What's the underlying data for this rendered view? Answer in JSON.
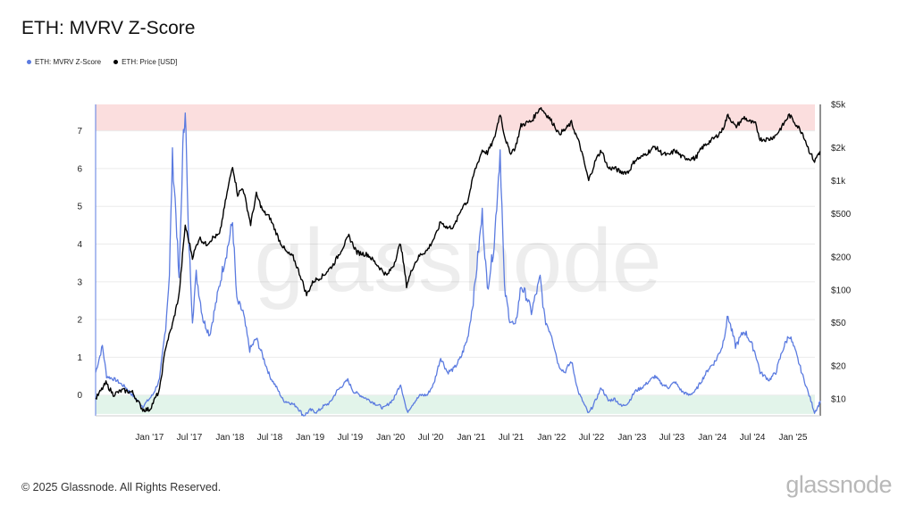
{
  "title": "ETH: MVRV Z-Score",
  "legend": [
    {
      "label": "ETH: MVRV Z-Score",
      "color": "#5b7be0"
    },
    {
      "label": "ETH: Price [USD]",
      "color": "#000000"
    }
  ],
  "footer": "© 2025 Glassnode. All Rights Reserved.",
  "brand": "glassnode",
  "watermark": "glassnode",
  "colors": {
    "zscore": "#5b7be0",
    "price": "#000000",
    "upper_band": "#fbdede",
    "lower_band": "#e2f4ea"
  },
  "chart_data": {
    "type": "line",
    "title": "ETH: MVRV Z-Score",
    "x_ticks": [
      "Jan '17",
      "Jul '17",
      "Jan '18",
      "Jul '18",
      "Jan '19",
      "Jul '19",
      "Jan '20",
      "Jul '20",
      "Jan '21",
      "Jul '21",
      "Jan '22",
      "Jul '22",
      "Jan '23",
      "Jul '23",
      "Jan '24",
      "Jul '24",
      "Jan '25"
    ],
    "x_range": [
      "2016-05-01",
      "2025-05-05"
    ],
    "y_left": {
      "ticks": [
        "0",
        "1",
        "2",
        "3",
        "4",
        "5",
        "6",
        "7"
      ],
      "range": [
        -0.55,
        7.7
      ]
    },
    "y_right": {
      "scale": "log",
      "ticks": [
        "$10",
        "$20",
        "$50",
        "$100",
        "$200",
        "$500",
        "$1k",
        "$2k",
        "$5k"
      ],
      "range": [
        7,
        5000
      ]
    },
    "bands": [
      {
        "axis": "left",
        "from": 7.0,
        "to": 7.7,
        "label": "",
        "color": "#fbdede"
      },
      {
        "axis": "left",
        "from": -0.5,
        "to": 0.0,
        "label": "",
        "color": "#e2f4ea"
      }
    ],
    "legend_position": "top-left",
    "grid": true,
    "series": [
      {
        "name": "ETH: MVRV Z-Score",
        "axis": "left",
        "color": "#5b7be0",
        "points": [
          [
            "2016-05-01",
            0.6
          ],
          [
            "2016-06-01",
            1.3
          ],
          [
            "2016-06-20",
            0.5
          ],
          [
            "2016-08-01",
            0.4
          ],
          [
            "2016-09-15",
            0.2
          ],
          [
            "2016-10-15",
            0.0
          ],
          [
            "2016-12-01",
            -0.3
          ],
          [
            "2017-01-15",
            0.0
          ],
          [
            "2017-02-15",
            0.4
          ],
          [
            "2017-03-15",
            1.8
          ],
          [
            "2017-04-01",
            3.2
          ],
          [
            "2017-04-15",
            6.3
          ],
          [
            "2017-05-01",
            4.8
          ],
          [
            "2017-05-15",
            3.0
          ],
          [
            "2017-06-01",
            6.5
          ],
          [
            "2017-06-12",
            7.7
          ],
          [
            "2017-06-25",
            4.5
          ],
          [
            "2017-07-15",
            2.0
          ],
          [
            "2017-08-01",
            3.2
          ],
          [
            "2017-09-01",
            2.0
          ],
          [
            "2017-10-01",
            1.6
          ],
          [
            "2017-11-01",
            2.5
          ],
          [
            "2017-12-01",
            3.4
          ],
          [
            "2017-12-25",
            4.0
          ],
          [
            "2018-01-13",
            4.6
          ],
          [
            "2018-02-01",
            2.5
          ],
          [
            "2018-03-01",
            2.2
          ],
          [
            "2018-04-01",
            1.2
          ],
          [
            "2018-05-01",
            1.5
          ],
          [
            "2018-06-01",
            1.0
          ],
          [
            "2018-07-01",
            0.5
          ],
          [
            "2018-08-01",
            0.2
          ],
          [
            "2018-09-01",
            -0.15
          ],
          [
            "2018-10-01",
            -0.2
          ],
          [
            "2018-11-01",
            -0.3
          ],
          [
            "2018-12-01",
            -0.55
          ],
          [
            "2019-01-01",
            -0.4
          ],
          [
            "2019-02-01",
            -0.45
          ],
          [
            "2019-03-01",
            -0.3
          ],
          [
            "2019-04-01",
            -0.2
          ],
          [
            "2019-05-01",
            0.1
          ],
          [
            "2019-06-20",
            0.4
          ],
          [
            "2019-07-15",
            0.1
          ],
          [
            "2019-08-15",
            0.0
          ],
          [
            "2019-09-15",
            -0.1
          ],
          [
            "2019-10-15",
            -0.2
          ],
          [
            "2019-12-01",
            -0.35
          ],
          [
            "2020-01-15",
            -0.1
          ],
          [
            "2020-02-15",
            0.3
          ],
          [
            "2020-03-15",
            -0.45
          ],
          [
            "2020-04-15",
            -0.2
          ],
          [
            "2020-05-15",
            0.0
          ],
          [
            "2020-06-15",
            0.0
          ],
          [
            "2020-07-15",
            0.3
          ],
          [
            "2020-08-15",
            1.0
          ],
          [
            "2020-09-15",
            0.6
          ],
          [
            "2020-10-15",
            0.7
          ],
          [
            "2020-11-15",
            1.0
          ],
          [
            "2020-12-15",
            1.5
          ],
          [
            "2021-01-10",
            2.5
          ],
          [
            "2021-02-20",
            4.8
          ],
          [
            "2021-03-15",
            2.8
          ],
          [
            "2021-04-15",
            4.0
          ],
          [
            "2021-05-12",
            6.5
          ],
          [
            "2021-06-01",
            2.8
          ],
          [
            "2021-06-25",
            2.0
          ],
          [
            "2021-07-20",
            1.8
          ],
          [
            "2021-08-15",
            2.9
          ],
          [
            "2021-09-10",
            2.6
          ],
          [
            "2021-10-01",
            2.2
          ],
          [
            "2021-11-10",
            3.1
          ],
          [
            "2021-12-01",
            2.0
          ],
          [
            "2022-01-01",
            1.6
          ],
          [
            "2022-02-01",
            0.8
          ],
          [
            "2022-03-01",
            0.6
          ],
          [
            "2022-04-01",
            0.9
          ],
          [
            "2022-05-01",
            0.1
          ],
          [
            "2022-06-18",
            -0.5
          ],
          [
            "2022-07-15",
            -0.2
          ],
          [
            "2022-08-15",
            0.2
          ],
          [
            "2022-09-15",
            -0.15
          ],
          [
            "2022-10-15",
            -0.1
          ],
          [
            "2022-11-15",
            -0.3
          ],
          [
            "2022-12-15",
            -0.2
          ],
          [
            "2023-01-15",
            0.1
          ],
          [
            "2023-02-15",
            0.2
          ],
          [
            "2023-04-15",
            0.5
          ],
          [
            "2023-05-15",
            0.3
          ],
          [
            "2023-06-15",
            0.2
          ],
          [
            "2023-07-15",
            0.35
          ],
          [
            "2023-08-15",
            0.1
          ],
          [
            "2023-09-15",
            0.0
          ],
          [
            "2023-10-15",
            0.1
          ],
          [
            "2023-11-15",
            0.4
          ],
          [
            "2023-12-15",
            0.7
          ],
          [
            "2024-01-15",
            0.9
          ],
          [
            "2024-02-15",
            1.3
          ],
          [
            "2024-03-12",
            2.1
          ],
          [
            "2024-04-15",
            1.3
          ],
          [
            "2024-05-25",
            1.7
          ],
          [
            "2024-06-15",
            1.5
          ],
          [
            "2024-07-15",
            1.1
          ],
          [
            "2024-08-05",
            0.6
          ],
          [
            "2024-09-15",
            0.4
          ],
          [
            "2024-10-15",
            0.6
          ],
          [
            "2024-11-15",
            1.2
          ],
          [
            "2024-12-15",
            1.6
          ],
          [
            "2025-01-15",
            1.1
          ],
          [
            "2025-02-15",
            0.5
          ],
          [
            "2025-03-15",
            0.0
          ],
          [
            "2025-04-09",
            -0.45
          ],
          [
            "2025-04-25",
            -0.3
          ],
          [
            "2025-05-05",
            -0.15
          ]
        ]
      },
      {
        "name": "ETH: Price [USD]",
        "axis": "right",
        "color": "#000000",
        "points": [
          [
            "2016-05-01",
            10
          ],
          [
            "2016-06-17",
            14
          ],
          [
            "2016-07-20",
            11
          ],
          [
            "2016-09-01",
            12
          ],
          [
            "2016-10-15",
            11.5
          ],
          [
            "2016-12-01",
            8
          ],
          [
            "2017-01-01",
            8
          ],
          [
            "2017-02-15",
            12
          ],
          [
            "2017-03-15",
            30
          ],
          [
            "2017-04-15",
            48
          ],
          [
            "2017-05-15",
            90
          ],
          [
            "2017-06-12",
            390
          ],
          [
            "2017-07-15",
            200
          ],
          [
            "2017-08-15",
            300
          ],
          [
            "2017-09-15",
            260
          ],
          [
            "2017-10-15",
            300
          ],
          [
            "2017-11-15",
            320
          ],
          [
            "2017-12-15",
            700
          ],
          [
            "2018-01-13",
            1380
          ],
          [
            "2018-02-05",
            750
          ],
          [
            "2018-03-01",
            860
          ],
          [
            "2018-04-05",
            400
          ],
          [
            "2018-05-01",
            750
          ],
          [
            "2018-06-01",
            520
          ],
          [
            "2018-07-01",
            460
          ],
          [
            "2018-08-15",
            280
          ],
          [
            "2018-09-15",
            220
          ],
          [
            "2018-10-15",
            200
          ],
          [
            "2018-11-20",
            130
          ],
          [
            "2018-12-15",
            90
          ],
          [
            "2019-01-15",
            120
          ],
          [
            "2019-03-01",
            135
          ],
          [
            "2019-04-15",
            170
          ],
          [
            "2019-06-25",
            310
          ],
          [
            "2019-08-01",
            220
          ],
          [
            "2019-09-20",
            210
          ],
          [
            "2019-10-20",
            180
          ],
          [
            "2019-12-15",
            135
          ],
          [
            "2020-01-15",
            170
          ],
          [
            "2020-02-15",
            270
          ],
          [
            "2020-03-13",
            110
          ],
          [
            "2020-04-15",
            170
          ],
          [
            "2020-05-15",
            210
          ],
          [
            "2020-06-15",
            230
          ],
          [
            "2020-07-25",
            320
          ],
          [
            "2020-08-15",
            420
          ],
          [
            "2020-09-15",
            370
          ],
          [
            "2020-10-15",
            380
          ],
          [
            "2020-11-25",
            600
          ],
          [
            "2020-12-15",
            640
          ],
          [
            "2021-01-15",
            1200
          ],
          [
            "2021-02-20",
            1900
          ],
          [
            "2021-03-15",
            1800
          ],
          [
            "2021-04-15",
            2400
          ],
          [
            "2021-05-12",
            4150
          ],
          [
            "2021-06-01",
            2600
          ],
          [
            "2021-06-25",
            1800
          ],
          [
            "2021-07-20",
            2000
          ],
          [
            "2021-08-15",
            3200
          ],
          [
            "2021-09-10",
            3400
          ],
          [
            "2021-10-01",
            3500
          ],
          [
            "2021-11-10",
            4700
          ],
          [
            "2021-12-15",
            3900
          ],
          [
            "2022-01-15",
            3200
          ],
          [
            "2022-02-01",
            2700
          ],
          [
            "2022-03-01",
            2900
          ],
          [
            "2022-04-01",
            3400
          ],
          [
            "2022-05-10",
            2100
          ],
          [
            "2022-06-18",
            1000
          ],
          [
            "2022-07-20",
            1550
          ],
          [
            "2022-08-15",
            1900
          ],
          [
            "2022-09-15",
            1300
          ],
          [
            "2022-10-15",
            1300
          ],
          [
            "2022-11-10",
            1200
          ],
          [
            "2022-12-15",
            1200
          ],
          [
            "2023-01-15",
            1550
          ],
          [
            "2023-02-15",
            1650
          ],
          [
            "2023-04-15",
            2050
          ],
          [
            "2023-05-15",
            1800
          ],
          [
            "2023-06-15",
            1700
          ],
          [
            "2023-07-15",
            1900
          ],
          [
            "2023-08-15",
            1650
          ],
          [
            "2023-09-15",
            1600
          ],
          [
            "2023-10-15",
            1600
          ],
          [
            "2023-11-15",
            2000
          ],
          [
            "2023-12-15",
            2250
          ],
          [
            "2024-01-15",
            2500
          ],
          [
            "2024-02-15",
            2900
          ],
          [
            "2024-03-12",
            4000
          ],
          [
            "2024-04-15",
            3100
          ],
          [
            "2024-05-25",
            3800
          ],
          [
            "2024-06-15",
            3500
          ],
          [
            "2024-07-15",
            3300
          ],
          [
            "2024-08-05",
            2400
          ],
          [
            "2024-09-15",
            2400
          ],
          [
            "2024-10-15",
            2600
          ],
          [
            "2024-11-15",
            3200
          ],
          [
            "2024-12-15",
            4000
          ],
          [
            "2025-01-15",
            3300
          ],
          [
            "2025-02-15",
            2700
          ],
          [
            "2025-03-15",
            1900
          ],
          [
            "2025-04-09",
            1500
          ],
          [
            "2025-04-25",
            1750
          ],
          [
            "2025-05-05",
            1850
          ]
        ]
      }
    ]
  }
}
